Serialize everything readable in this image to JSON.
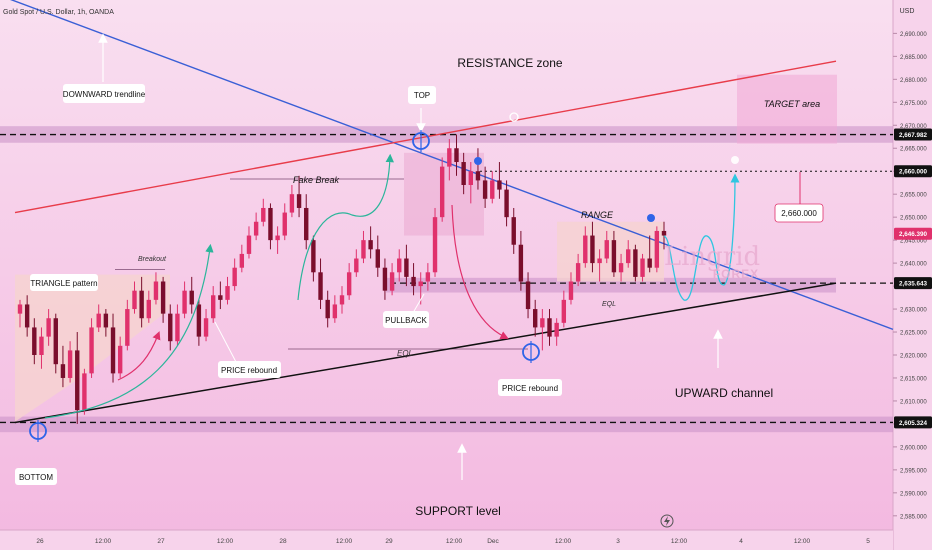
{
  "header": {
    "symbol": "Gold Spot / U.S. Dollar, 1h, OANDA",
    "currency": "USD"
  },
  "annotations": {
    "downward_trendline": "DOWNWARD trendline",
    "resistance_zone": "RESISTANCE zone",
    "top": "TOP",
    "target_area": "TARGET area",
    "fake_break": "Fake Break",
    "range": "RANGE",
    "target_price": "2,660.000",
    "triangle_pattern": "TRIANGLE pattern",
    "breakout": "Breakout",
    "pullback": "PULLBACK",
    "eql_left": "EQL",
    "eql_right": "EQL",
    "price_rebound_left": "PRICE rebound",
    "price_rebound_mid": "PRICE rebound",
    "upward_channel": "UPWARD channel",
    "bottom": "BOTTOM",
    "support_level": "SUPPORT level"
  },
  "watermark": {
    "line1": "Lingrid",
    "line2": "FOREX"
  },
  "colors": {
    "background_top": "#f9dff0",
    "background_bottom": "#f3b8e0",
    "zone_band": "#c98fc6",
    "candle_up": "#e0316c",
    "candle_down": "#7a0e2c",
    "downward_trendline": "#3a5fd6",
    "resistance_line": "#e83c4a",
    "support_line": "#111111",
    "projection": "#2fc6e0",
    "marker": "#2f64e8",
    "current_price_tag": "#e0316c",
    "level_tag": "#111111"
  },
  "chart_data": {
    "type": "candlestick",
    "title": "Gold Spot / U.S. Dollar, 1h, OANDA",
    "ylabel": "USD",
    "ylim": [
      2583,
      2694
    ],
    "y_ticks": [
      2585,
      2590,
      2595,
      2600,
      2605,
      2610,
      2615,
      2620,
      2625,
      2630,
      2635,
      2640,
      2645,
      2650,
      2655,
      2660,
      2665,
      2670,
      2675,
      2680,
      2685,
      2690
    ],
    "y_tick_labels": [
      "2,585.000",
      "2,590.000",
      "2,595.000",
      "2,600.000",
      "2,605.000",
      "2,610.000",
      "2,615.000",
      "2,620.000",
      "2,625.000",
      "2,630.000",
      "2,635.000",
      "2,640.000",
      "2,645.000",
      "2,650.000",
      "2,655.000",
      "2,660.000",
      "2,665.000",
      "2,670.000",
      "2,675.000",
      "2,680.000",
      "2,685.000",
      "2,690.000"
    ],
    "x_ticks": [
      "26",
      "12:00",
      "27",
      "12:00",
      "28",
      "12:00",
      "29",
      "12:00",
      "Dec",
      "12:00",
      "3",
      "12:00",
      "4",
      "12:00",
      "5"
    ],
    "price_tags": [
      {
        "value": 2667.982,
        "label": "2,667.982",
        "kind": "level"
      },
      {
        "value": 2660.0,
        "label": "2,660.000",
        "kind": "level"
      },
      {
        "value": 2646.39,
        "label": "2,646.390",
        "kind": "current"
      },
      {
        "value": 2635.643,
        "label": "2,635.643",
        "kind": "level"
      },
      {
        "value": 2605.324,
        "label": "2,605.324",
        "kind": "level"
      }
    ],
    "levels": {
      "resistance_zone": [
        2666.2,
        2669.8
      ],
      "target_dotted": 2660.0,
      "range_zone": [
        2633.6,
        2636.8
      ],
      "range_box": [
        2636,
        2649
      ],
      "support_zone": [
        2603.2,
        2606.6
      ],
      "target_area": [
        2666,
        2681
      ]
    },
    "trendlines": {
      "downward": {
        "from": [
          0,
          2698
        ],
        "to": [
          114,
          2632.6
        ]
      },
      "resistance_red": {
        "from": [
          0,
          2651
        ],
        "to": [
          104,
          2680
        ]
      },
      "support_black": {
        "from": [
          0,
          2605.3
        ],
        "to": [
          104,
          2632
        ]
      }
    },
    "ohlc": [
      [
        2629,
        2632,
        2626,
        2631
      ],
      [
        2631,
        2633,
        2624,
        2626
      ],
      [
        2626,
        2628,
        2618,
        2620
      ],
      [
        2620,
        2626,
        2617,
        2624
      ],
      [
        2624,
        2630,
        2622,
        2628
      ],
      [
        2628,
        2629,
        2616,
        2618
      ],
      [
        2618,
        2622,
        2613,
        2615
      ],
      [
        2615,
        2623,
        2614,
        2621
      ],
      [
        2621,
        2625,
        2605,
        2608
      ],
      [
        2608,
        2617,
        2607,
        2616
      ],
      [
        2616,
        2628,
        2615,
        2626
      ],
      [
        2626,
        2631,
        2625,
        2629
      ],
      [
        2629,
        2630,
        2624,
        2626
      ],
      [
        2626,
        2629,
        2614,
        2616
      ],
      [
        2616,
        2624,
        2615,
        2622
      ],
      [
        2622,
        2632,
        2621,
        2630
      ],
      [
        2630,
        2636,
        2629,
        2634
      ],
      [
        2634,
        2637,
        2626,
        2628
      ],
      [
        2628,
        2634,
        2627,
        2632
      ],
      [
        2632,
        2638,
        2631,
        2636
      ],
      [
        2636,
        2637,
        2627,
        2629
      ],
      [
        2629,
        2631,
        2621,
        2623
      ],
      [
        2623,
        2631,
        2622,
        2629
      ],
      [
        2629,
        2636,
        2628,
        2634
      ],
      [
        2634,
        2637,
        2629,
        2631
      ],
      [
        2631,
        2632,
        2622,
        2624
      ],
      [
        2624,
        2630,
        2623,
        2628
      ],
      [
        2628,
        2635,
        2627,
        2633
      ],
      [
        2633,
        2636,
        2630,
        2632
      ],
      [
        2632,
        2637,
        2631,
        2635
      ],
      [
        2635,
        2641,
        2634,
        2639
      ],
      [
        2639,
        2644,
        2638,
        2642
      ],
      [
        2642,
        2648,
        2641,
        2646
      ],
      [
        2646,
        2651,
        2645,
        2649
      ],
      [
        2649,
        2654,
        2648,
        2652
      ],
      [
        2652,
        2653,
        2643,
        2645
      ],
      [
        2645,
        2648,
        2642,
        2646
      ],
      [
        2646,
        2653,
        2645,
        2651
      ],
      [
        2651,
        2657,
        2650,
        2655
      ],
      [
        2655,
        2659,
        2650,
        2652
      ],
      [
        2652,
        2655,
        2643,
        2645
      ],
      [
        2645,
        2646,
        2636,
        2638
      ],
      [
        2638,
        2641,
        2630,
        2632
      ],
      [
        2632,
        2634,
        2626,
        2628
      ],
      [
        2628,
        2633,
        2627,
        2631
      ],
      [
        2631,
        2635,
        2629,
        2633
      ],
      [
        2633,
        2640,
        2632,
        2638
      ],
      [
        2638,
        2643,
        2637,
        2641
      ],
      [
        2641,
        2647,
        2640,
        2645
      ],
      [
        2645,
        2648,
        2641,
        2643
      ],
      [
        2643,
        2646,
        2637,
        2639
      ],
      [
        2639,
        2641,
        2632,
        2634
      ],
      [
        2634,
        2640,
        2633,
        2638
      ],
      [
        2638,
        2643,
        2636,
        2641
      ],
      [
        2641,
        2644,
        2635,
        2637
      ],
      [
        2637,
        2640,
        2633,
        2635
      ],
      [
        2635,
        2638,
        2631,
        2636
      ],
      [
        2636,
        2640,
        2634,
        2638
      ],
      [
        2638,
        2652,
        2637,
        2650
      ],
      [
        2650,
        2663,
        2649,
        2661
      ],
      [
        2661,
        2667,
        2658,
        2665
      ],
      [
        2665,
        2668,
        2659,
        2662
      ],
      [
        2662,
        2664,
        2655,
        2657
      ],
      [
        2657,
        2662,
        2653,
        2660
      ],
      [
        2660,
        2665,
        2656,
        2658
      ],
      [
        2658,
        2661,
        2652,
        2654
      ],
      [
        2654,
        2660,
        2653,
        2658
      ],
      [
        2658,
        2662,
        2654,
        2656
      ],
      [
        2656,
        2658,
        2648,
        2650
      ],
      [
        2650,
        2652,
        2642,
        2644
      ],
      [
        2644,
        2647,
        2634,
        2636
      ],
      [
        2636,
        2638,
        2628,
        2630
      ],
      [
        2630,
        2632,
        2624,
        2626
      ],
      [
        2626,
        2630,
        2621,
        2628
      ],
      [
        2628,
        2630,
        2622,
        2624
      ],
      [
        2624,
        2628,
        2622,
        2627
      ],
      [
        2627,
        2634,
        2626,
        2632
      ],
      [
        2632,
        2638,
        2631,
        2636
      ],
      [
        2636,
        2642,
        2635,
        2640
      ],
      [
        2640,
        2648,
        2639,
        2646
      ],
      [
        2646,
        2649,
        2638,
        2640
      ],
      [
        2640,
        2643,
        2636,
        2641
      ],
      [
        2641,
        2647,
        2640,
        2645
      ],
      [
        2645,
        2647,
        2637,
        2638
      ],
      [
        2638,
        2642,
        2636,
        2640
      ],
      [
        2640,
        2645,
        2639,
        2643
      ],
      [
        2643,
        2644,
        2636,
        2637
      ],
      [
        2637,
        2642,
        2636,
        2641
      ],
      [
        2641,
        2646,
        2638,
        2639
      ],
      [
        2639,
        2648,
        2638,
        2647
      ],
      [
        2647,
        2649,
        2643,
        2646
      ]
    ]
  }
}
